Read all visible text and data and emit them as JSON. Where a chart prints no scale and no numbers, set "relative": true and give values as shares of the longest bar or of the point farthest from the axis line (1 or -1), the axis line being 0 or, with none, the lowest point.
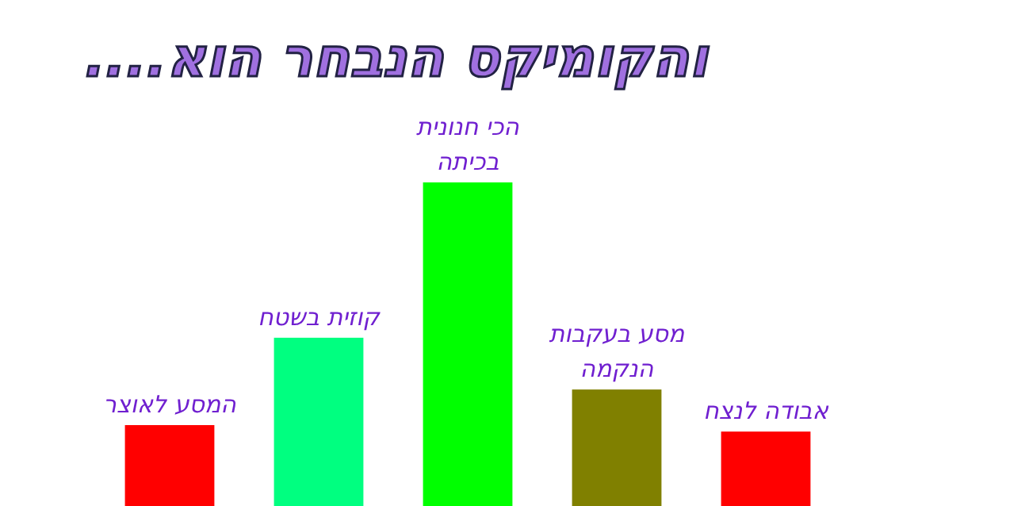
{
  "chart_data": {
    "type": "bar",
    "title": "והקומיקס הנבחר הוא....",
    "relative": true,
    "categories": [
      "המסע לאוצר",
      "קוזית בשטח",
      "הכי חנונית בכיתה",
      "מסע בעקבות הנקמה",
      "אבודה לנצח"
    ],
    "values": [
      0.25,
      0.52,
      1,
      0.36,
      0.23
    ],
    "colors": [
      "#ff0000",
      "#00ff80",
      "#00ff00",
      "#808000",
      "#ff0000"
    ]
  }
}
